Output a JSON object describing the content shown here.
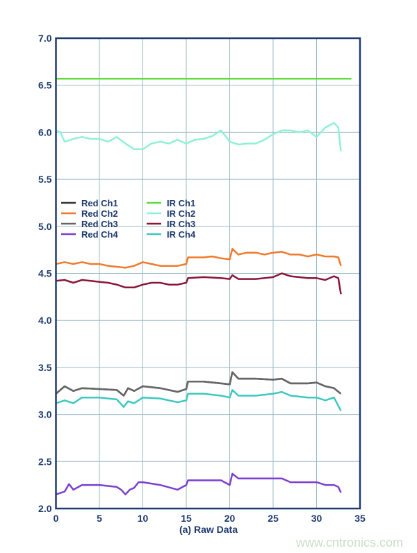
{
  "chart_data": {
    "type": "line",
    "title": "",
    "xlabel": "(a) Raw Data",
    "ylabel": "",
    "xlim": [
      0,
      35
    ],
    "ylim": [
      2.0,
      7.0
    ],
    "xticks": [
      "0",
      "5",
      "10",
      "15",
      "20",
      "25",
      "30",
      "35"
    ],
    "yticks": [
      "2.0",
      "2.5",
      "3.0",
      "3.5",
      "4.0",
      "4.5",
      "5.0",
      "5.5",
      "6.0",
      "6.5",
      "7.0"
    ],
    "grid": true,
    "legend_position": "left-middle",
    "series": [
      {
        "name": "Red Ch1",
        "color": "#333333",
        "x": [
          0,
          1,
          2,
          3,
          5,
          7,
          7.8,
          8.3,
          9,
          10,
          12,
          14,
          15,
          15.2,
          17,
          19,
          20,
          20.3,
          21,
          23,
          25,
          26,
          27,
          29,
          30,
          31,
          32,
          32.8
        ],
        "y": [
          3.22,
          3.3,
          3.25,
          3.28,
          3.27,
          3.26,
          3.2,
          3.28,
          3.25,
          3.3,
          3.28,
          3.24,
          3.27,
          3.35,
          3.35,
          3.33,
          3.32,
          3.45,
          3.38,
          3.38,
          3.37,
          3.38,
          3.33,
          3.33,
          3.34,
          3.3,
          3.28,
          3.22
        ]
      },
      {
        "name": "Red Ch2",
        "color": "#f07a2a",
        "x": [
          0,
          1,
          2,
          3,
          4,
          5,
          6,
          7,
          8,
          9,
          10,
          11,
          12,
          13,
          14,
          15,
          15.2,
          16,
          17,
          18,
          19,
          20,
          20.3,
          21,
          22,
          23,
          24,
          25,
          26,
          27,
          28,
          29,
          30,
          31,
          32,
          32.5,
          32.8
        ],
        "y": [
          4.6,
          4.62,
          4.6,
          4.62,
          4.6,
          4.6,
          4.58,
          4.57,
          4.56,
          4.58,
          4.62,
          4.6,
          4.58,
          4.58,
          4.58,
          4.6,
          4.67,
          4.67,
          4.67,
          4.68,
          4.66,
          4.65,
          4.76,
          4.7,
          4.72,
          4.72,
          4.7,
          4.72,
          4.73,
          4.7,
          4.7,
          4.68,
          4.7,
          4.68,
          4.68,
          4.67,
          4.58
        ]
      },
      {
        "name": "Red Ch3",
        "color": "#666666",
        "x": [
          0,
          1,
          2,
          3,
          5,
          7,
          7.8,
          8.3,
          9,
          10,
          12,
          14,
          15,
          15.2,
          17,
          19,
          20,
          20.3,
          21,
          23,
          25,
          26,
          27,
          29,
          30,
          31,
          32,
          32.8
        ],
        "y": [
          3.22,
          3.3,
          3.25,
          3.28,
          3.27,
          3.26,
          3.2,
          3.28,
          3.25,
          3.3,
          3.28,
          3.24,
          3.27,
          3.35,
          3.35,
          3.33,
          3.32,
          3.45,
          3.38,
          3.38,
          3.37,
          3.38,
          3.33,
          3.33,
          3.34,
          3.3,
          3.28,
          3.22
        ]
      },
      {
        "name": "Red Ch4",
        "color": "#7b3fd0",
        "x": [
          0,
          1,
          1.5,
          2,
          3,
          5,
          7,
          7.5,
          8,
          8.5,
          9,
          9.5,
          10,
          12,
          14,
          15,
          15.2,
          17,
          19,
          20,
          20.3,
          21,
          23,
          25,
          26,
          27,
          29,
          30,
          31,
          32,
          32.5,
          32.8
        ],
        "y": [
          2.15,
          2.18,
          2.26,
          2.2,
          2.25,
          2.25,
          2.23,
          2.2,
          2.15,
          2.2,
          2.22,
          2.28,
          2.28,
          2.25,
          2.2,
          2.25,
          2.3,
          2.3,
          2.3,
          2.25,
          2.37,
          2.32,
          2.32,
          2.32,
          2.32,
          2.28,
          2.28,
          2.28,
          2.25,
          2.25,
          2.23,
          2.17
        ]
      },
      {
        "name": "IR Ch1",
        "color": "#5fdc3a",
        "x": [
          0,
          34
        ],
        "y": [
          6.57,
          6.57
        ]
      },
      {
        "name": "IR Ch2",
        "color": "#8ff0d8",
        "x": [
          0,
          0.5,
          1,
          2,
          3,
          4,
          5,
          6,
          7,
          8,
          9,
          10,
          11,
          12,
          13,
          14,
          15,
          16,
          17,
          18,
          19,
          20,
          21,
          22,
          23,
          24,
          25,
          26,
          27,
          28,
          29,
          30,
          31,
          32,
          32.5,
          32.8
        ],
        "y": [
          6.02,
          6.0,
          5.9,
          5.93,
          5.95,
          5.93,
          5.93,
          5.9,
          5.95,
          5.88,
          5.82,
          5.82,
          5.88,
          5.9,
          5.88,
          5.92,
          5.88,
          5.92,
          5.93,
          5.96,
          6.02,
          5.9,
          5.87,
          5.88,
          5.88,
          5.92,
          5.98,
          6.02,
          6.02,
          6.0,
          6.02,
          5.95,
          6.05,
          6.1,
          6.05,
          5.8
        ]
      },
      {
        "name": "IR Ch3",
        "color": "#8a1538",
        "x": [
          0,
          1,
          2,
          3,
          4,
          5,
          6,
          7,
          8,
          9,
          10,
          11,
          12,
          13,
          14,
          15,
          15.2,
          17,
          19,
          20,
          20.3,
          21,
          23,
          25,
          26,
          27,
          29,
          30,
          31,
          32,
          32.5,
          32.8
        ],
        "y": [
          4.42,
          4.43,
          4.4,
          4.43,
          4.42,
          4.41,
          4.4,
          4.38,
          4.35,
          4.35,
          4.38,
          4.4,
          4.4,
          4.38,
          4.38,
          4.4,
          4.45,
          4.46,
          4.45,
          4.44,
          4.48,
          4.44,
          4.44,
          4.46,
          4.5,
          4.47,
          4.45,
          4.45,
          4.43,
          4.47,
          4.45,
          4.28
        ]
      },
      {
        "name": "IR Ch4",
        "color": "#3cc8c0",
        "x": [
          0,
          1,
          2,
          3,
          5,
          7,
          7.8,
          8.3,
          9,
          10,
          12,
          14,
          15,
          15.2,
          17,
          19,
          20,
          20.3,
          21,
          23,
          25,
          26,
          27,
          29,
          30,
          31,
          32,
          32.8
        ],
        "y": [
          3.12,
          3.15,
          3.12,
          3.18,
          3.18,
          3.16,
          3.08,
          3.14,
          3.12,
          3.18,
          3.17,
          3.13,
          3.15,
          3.22,
          3.22,
          3.2,
          3.18,
          3.26,
          3.2,
          3.2,
          3.22,
          3.24,
          3.2,
          3.18,
          3.18,
          3.15,
          3.18,
          3.04
        ]
      }
    ]
  },
  "watermark": "www.cntronics.com"
}
